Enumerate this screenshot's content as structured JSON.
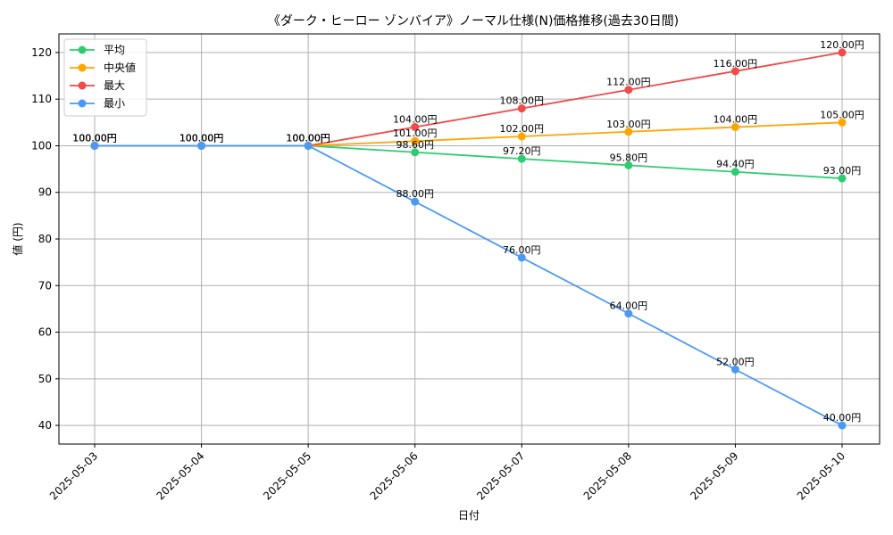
{
  "chart_data": {
    "type": "line",
    "title": "《ダーク・ヒーロー ゾンバイア》ノーマル仕様(N)価格推移(過去30日間)",
    "xlabel": "日付",
    "ylabel": "値 (円)",
    "categories": [
      "2025-05-03",
      "2025-05-04",
      "2025-05-05",
      "2025-05-06",
      "2025-05-07",
      "2025-05-08",
      "2025-05-09",
      "2025-05-10"
    ],
    "ylim": [
      36,
      124
    ],
    "yticks": [
      40,
      50,
      60,
      70,
      80,
      90,
      100,
      110,
      120
    ],
    "grid": true,
    "legend_position": "top-left",
    "label_suffix": "円",
    "series": [
      {
        "name": "平均",
        "color": "#2ecc71",
        "values": [
          100,
          100,
          100,
          98.6,
          97.2,
          95.8,
          94.4,
          93.0
        ],
        "labels": [
          "100.00円",
          "100.00円",
          "100.00円",
          "98.60円",
          "97.20円",
          "95.80円",
          "94.40円",
          "93.00円"
        ]
      },
      {
        "name": "中央値",
        "color": "#ffa500",
        "values": [
          100,
          100,
          100,
          101,
          102,
          103,
          104,
          105
        ],
        "labels": [
          "100.00円",
          "100.00円",
          "100.00円",
          "101.00円",
          "102.00円",
          "103.00円",
          "104.00円",
          "105.00円"
        ]
      },
      {
        "name": "最大",
        "color": "#f04a4a",
        "values": [
          100,
          100,
          100,
          104,
          108,
          112,
          116,
          120
        ],
        "labels": [
          "100.00円",
          "100.00円",
          "100.00円",
          "104.00円",
          "108.00円",
          "112.00円",
          "116.00円",
          "120.00円"
        ]
      },
      {
        "name": "最小",
        "color": "#4a9af5",
        "values": [
          100,
          100,
          100,
          88,
          76,
          64,
          52,
          40
        ],
        "labels": [
          "100.00円",
          "100.00円",
          "100.00円",
          "88.00円",
          "76.00円",
          "64.00円",
          "52.00円",
          "40.00円"
        ]
      }
    ]
  }
}
